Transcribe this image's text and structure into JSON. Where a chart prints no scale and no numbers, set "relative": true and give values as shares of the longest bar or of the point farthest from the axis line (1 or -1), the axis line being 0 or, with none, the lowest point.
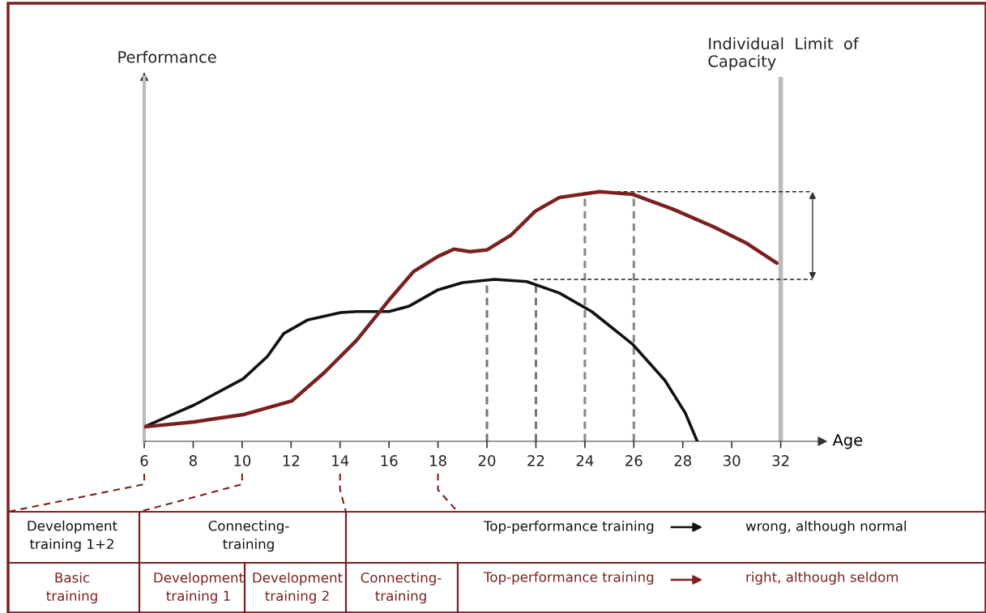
{
  "chart_data": {
    "type": "line",
    "relative": true,
    "xlabel": "Age",
    "x": [
      6,
      8.05,
      10.04,
      12.03,
      13.35,
      14.68,
      16.0,
      17.0,
      18.0,
      18.65,
      19.3,
      20.0,
      20.97,
      21.97,
      22.96,
      24.6,
      25.94,
      27.6,
      29.25,
      30.58,
      31.84
    ],
    "xlim": [
      6,
      33.7
    ],
    "xticks": [
      6,
      8,
      10,
      12,
      14,
      16,
      18,
      20,
      22,
      24,
      26,
      28,
      30,
      32
    ],
    "series": [
      {
        "color": "#111111",
        "x": [
          6,
          8.05,
          10.04,
          11.03,
          11.7,
          12.69,
          14.02,
          14.68,
          16.0,
          16.83,
          18.0,
          19.0,
          20.31,
          21.63,
          22.96,
          24.28,
          25.94,
          27.27,
          28.1,
          28.59
        ],
        "values": [
          0.058,
          0.146,
          0.25,
          0.34,
          0.432,
          0.487,
          0.516,
          0.52,
          0.52,
          0.542,
          0.607,
          0.636,
          0.649,
          0.64,
          0.594,
          0.52,
          0.39,
          0.244,
          0.114,
          0
        ]
      },
      {
        "color": "#7a2020",
        "values": [
          0.058,
          0.078,
          0.107,
          0.162,
          0.275,
          0.405,
          0.566,
          0.68,
          0.741,
          0.77,
          0.76,
          0.767,
          0.825,
          0.922,
          0.977,
          1.0,
          0.99,
          0.93,
          0.86,
          0.795,
          0.714
        ]
      },
      {
        "type": "line",
        "line_style": "dashed",
        "color": "#777777",
        "x": [
          20,
          20
        ],
        "values": [
          0,
          0.649
        ]
      },
      {
        "type": "line",
        "line_style": "dashed",
        "color": "#777777",
        "x": [
          22,
          22
        ],
        "values": [
          0,
          0.649
        ]
      },
      {
        "type": "line",
        "line_style": "dashed",
        "color": "#888888",
        "x": [
          24,
          24
        ],
        "values": [
          0,
          1.0
        ]
      },
      {
        "type": "line",
        "line_style": "dashed",
        "color": "#888888",
        "x": [
          26,
          26
        ],
        "values": [
          0,
          1.0
        ]
      },
      {
        "type": "line",
        "line_style": "dashed",
        "color": "#222222",
        "x": [
          21.9,
          33.3
        ],
        "values": [
          0.649,
          0.649
        ]
      },
      {
        "type": "line",
        "line_style": "dashed",
        "color": "#222222",
        "x": [
          25.3,
          33.3
        ],
        "values": [
          1.0,
          1.0
        ]
      }
    ],
    "ref_lines": [
      {
        "axis": "x",
        "value": 32,
        "label": "Individual  Limit  of\nCapacity",
        "color": "#bbbbbb"
      }
    ],
    "annotations": [
      "Development\ntraining 1+2",
      "Connecting-\ntraining",
      "Top-performance training",
      "wrong, although normal",
      "Basic\ntraining",
      "Development\ntraining 1",
      "Development\ntraining 2",
      "Connecting-\ntraining",
      "Top-performance training",
      "right, although seldom",
      "Performance"
    ]
  }
}
